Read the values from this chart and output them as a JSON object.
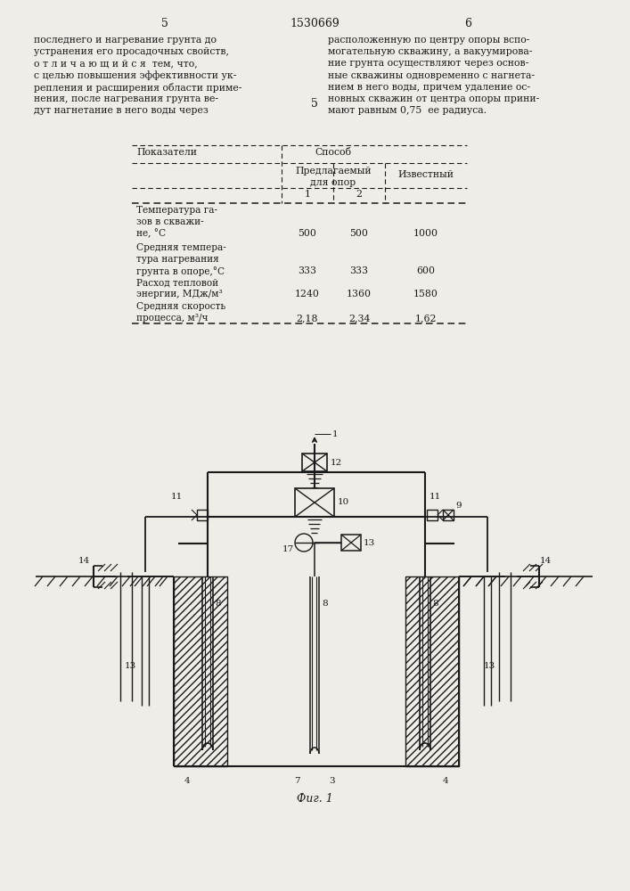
{
  "page_bg": "#f0ede8",
  "text_color": "#1a1a1a",
  "page_num_left": "5",
  "patent_num": "1530669",
  "page_num_right": "6",
  "left_lines": [
    "последнего и нагревание грунта до",
    "устранения его просадочных свойств,",
    "о т л и ч а ю щ и й с я  тем, что,",
    "с целью повышения эффективности ук-",
    "репления и расширения области приме-",
    "нения, после нагревания грунта ве-",
    "дут нагнетание в него воды через"
  ],
  "right_lines": [
    "расположенную по центру опоры вспо-",
    "могательную скважину, а вакуумирова-",
    "ние грунта осуществляют через основ-",
    "ные скважины одновременно с нагнета-",
    "нием в него воды, причем удаление ос-",
    "новных скважин от центра опоры прини-",
    "мают равным 0,75  ее радиуса."
  ],
  "rows": [
    {
      "label": [
        "Температура га-",
        "зов в скважи-",
        "не, °C"
      ],
      "v1": "500",
      "v2": "500",
      "v3": "1000"
    },
    {
      "label": [
        "Средняя темпера-",
        "тура нагревания",
        "грунта в опоре,°C"
      ],
      "v1": "333",
      "v2": "333",
      "v3": "600"
    },
    {
      "label": [
        "Расход тепловой",
        "энергии, МДж/м³"
      ],
      "v1": "1240",
      "v2": "1360",
      "v3": "1580"
    },
    {
      "label": [
        "Средняя скорость",
        "процесса, м³/ч"
      ],
      "v1": "2,18",
      "v2": "2,34",
      "v3": "1,62"
    }
  ]
}
